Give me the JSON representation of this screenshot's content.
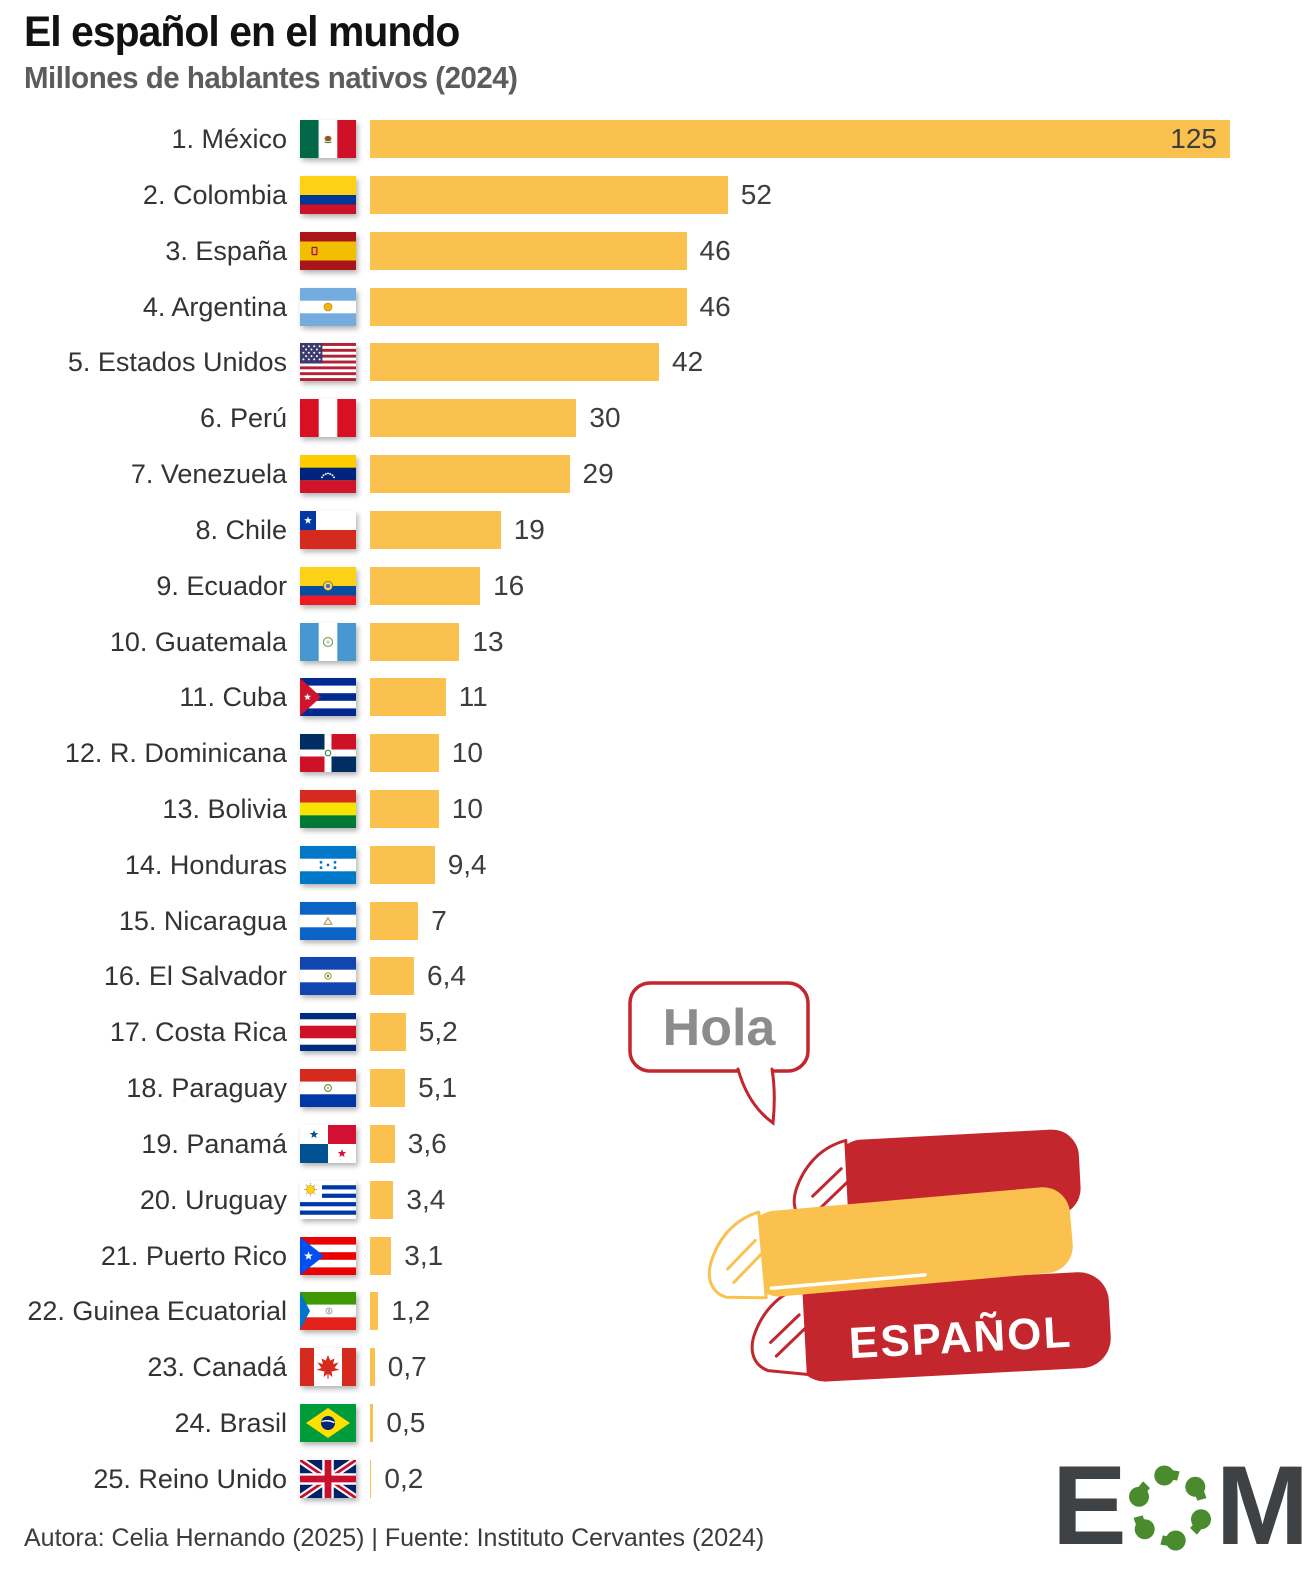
{
  "header": {
    "title": "El español en el mundo",
    "subtitle": "Millones de hablantes nativos (2024)"
  },
  "chart_data": {
    "type": "bar",
    "orientation": "horizontal",
    "title": "El español en el mundo",
    "subtitle": "Millones de hablantes nativos (2024)",
    "xlabel": "",
    "ylabel": "",
    "xlim": [
      0,
      125
    ],
    "grid": false,
    "bar_color": "#FBC14E",
    "categories": [
      "1. México",
      "2. Colombia",
      "3. España",
      "4. Argentina",
      "5. Estados Unidos",
      "6. Perú",
      "7. Venezuela",
      "8. Chile",
      "9. Ecuador",
      "10. Guatemala",
      "11. Cuba",
      "12. R. Dominicana",
      "13. Bolivia",
      "14. Honduras",
      "15. Nicaragua",
      "16. El Salvador",
      "17. Costa Rica",
      "18. Paraguay",
      "19. Panamá",
      "20. Uruguay",
      "21. Puerto Rico",
      "22. Guinea Ecuatorial",
      "23. Canadá",
      "24. Brasil",
      "25. Reino Unido"
    ],
    "values": [
      125,
      52,
      46,
      46,
      42,
      30,
      29,
      19,
      16,
      13,
      11,
      10,
      10,
      9.4,
      7,
      6.4,
      5.2,
      5.1,
      3.6,
      3.4,
      3.1,
      1.2,
      0.7,
      0.5,
      0.2
    ],
    "value_labels": [
      "125",
      "52",
      "46",
      "46",
      "42",
      "30",
      "29",
      "19",
      "16",
      "13",
      "11",
      "10",
      "10",
      "9,4",
      "7",
      "6,4",
      "5,2",
      "5,1",
      "3,6",
      "3,4",
      "3,1",
      "1,2",
      "0,7",
      "0,5",
      "0,2"
    ],
    "flags": [
      "mexico",
      "colombia",
      "spain",
      "argentina",
      "usa",
      "peru",
      "venezuela",
      "chile",
      "ecuador",
      "guatemala",
      "cuba",
      "dominican-republic",
      "bolivia",
      "honduras",
      "nicaragua",
      "el-salvador",
      "costa-rica",
      "paraguay",
      "panama",
      "uruguay",
      "puerto-rico",
      "equatorial-guinea",
      "canada",
      "brazil",
      "united-kingdom"
    ]
  },
  "illustration": {
    "speech_bubble_text": "Hola",
    "book_label": "ESPAÑOL"
  },
  "colors": {
    "bar_yellow": "#FBC14E",
    "red": "#C3262C",
    "hola_gray": "#8C8C8C",
    "logo_dark": "#3F4245",
    "logo_green": "#4A8B2D"
  },
  "footer": {
    "credit": "Autora: Celia Hernando (2025) | Fuente: Instituto Cervantes (2024)"
  },
  "logo": {
    "text": "EOM",
    "letters": [
      "E",
      "M"
    ]
  }
}
